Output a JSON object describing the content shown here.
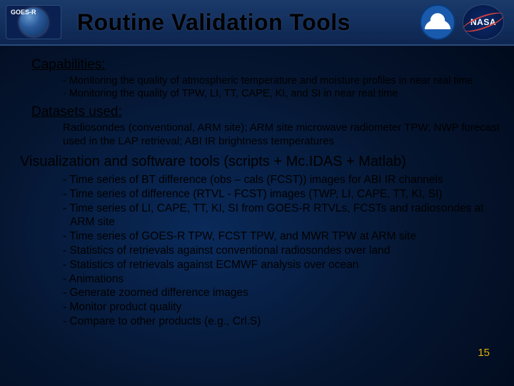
{
  "header": {
    "goes_label": "GOES-R",
    "title": "Routine Validation Tools",
    "nasa_label": "NASA"
  },
  "sections": {
    "capabilities": {
      "heading": "Capabilities:",
      "items": [
        "- Monitoring the quality of atmospheric temperature and moisture profiles in near real time",
        "- Monitoring the quality of TPW, LI, TT, CAPE, KI, and SI in near real time"
      ]
    },
    "datasets": {
      "heading": "Datasets used:",
      "text": "Radiosondes (conventional, ARM site); ARM site microwave radiometer TPW; NWP forecast used in the LAP retrieval; ABI IR brightness temperatures"
    },
    "visualization": {
      "heading": "Visualization and software tools (scripts + Mc.IDAS + Matlab)",
      "items": [
        "- Time series of BT difference (obs – cals (FCST)) images for ABI IR channels",
        "- Time series of difference (RTVL - FCST) images (TWP, LI, CAPE, TT, KI, SI)",
        "- Time series of LI, CAPE, TT, KI, SI from GOES-R RTVLs, FCSTs and radiosondes at ARM site",
        "- Time series of GOES-R TPW, FCST TPW, and MWR TPW at ARM site",
        "- Statistics of retrievals against conventional radiosondes over land",
        "- Statistics of retrievals against ECMWF analysis over ocean",
        "- Animations",
        "- Generate zoomed difference images",
        "- Monitor product quality",
        "- Compare to other products (e.g., Crl.S)"
      ]
    }
  },
  "slide_number": "15",
  "colors": {
    "bg_dark": "#051530",
    "bg_mid": "#0a2a5a",
    "header_grad_top": "#1a3a6a",
    "header_grad_bot": "#0d2550",
    "slide_num": "#e0b000",
    "text": "#000000"
  }
}
